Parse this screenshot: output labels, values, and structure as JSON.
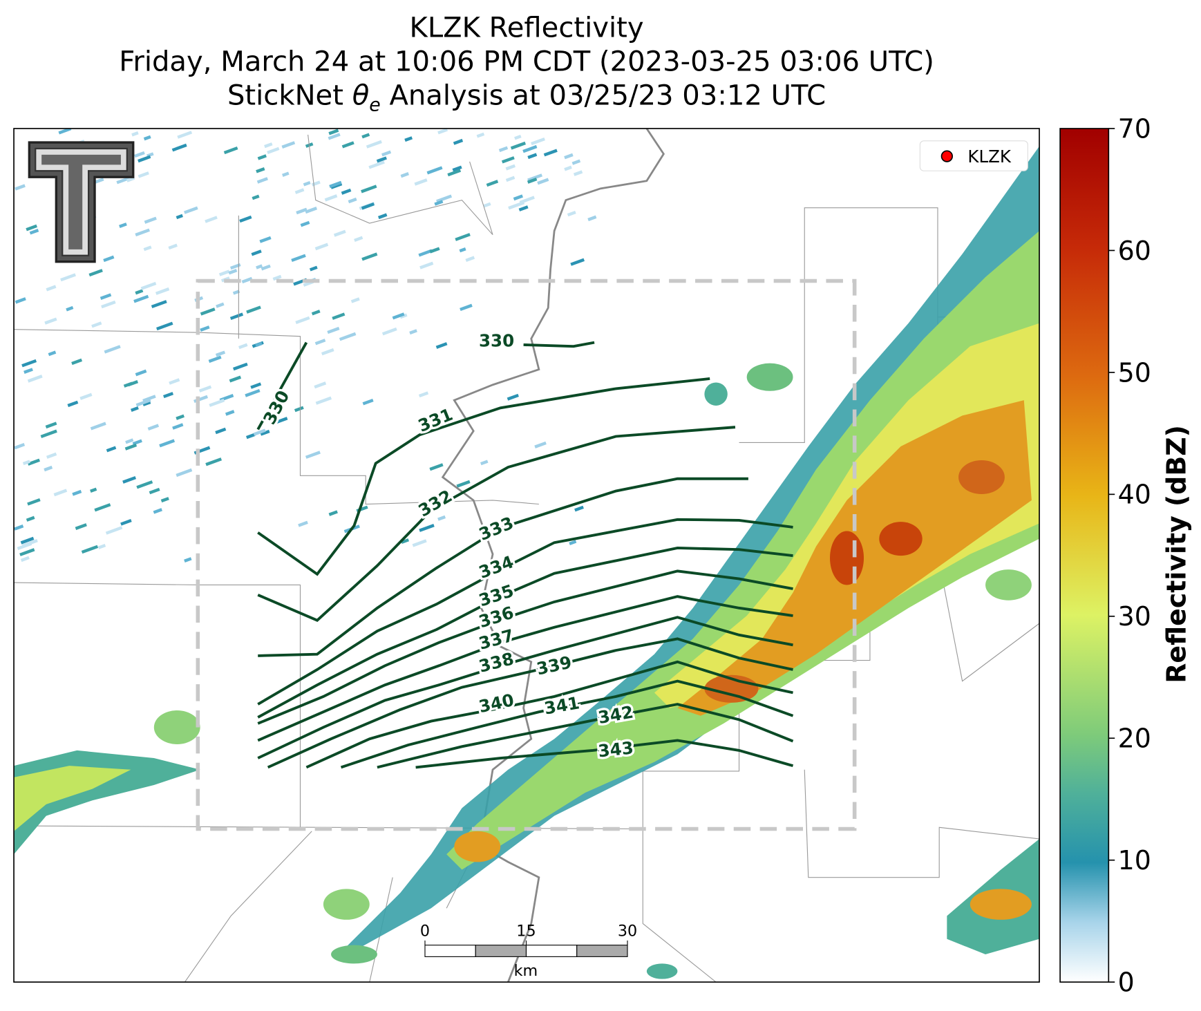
{
  "title": {
    "line1": "KLZK Reflectivity",
    "line2": "Friday, March 24 at 10:06 PM CDT (2023-03-25 03:06 UTC)",
    "line3": {
      "before": "StickNet ",
      "symbol": "θ",
      "subscript": "e",
      "after": " Analysis at 03/25/23 03:12 UTC"
    }
  },
  "legend": {
    "label": "KLZK",
    "color": "#ff0000"
  },
  "contours": {
    "color": "#0b4a26",
    "levels": [
      330,
      330,
      331,
      332,
      333,
      334,
      335,
      336,
      337,
      338,
      339,
      340,
      341,
      342,
      343
    ]
  },
  "colorbar": {
    "label": "Reflectivity (dBZ)",
    "lim": [
      0,
      70
    ],
    "ticks": [
      0,
      10,
      20,
      30,
      40,
      50,
      60,
      70
    ]
  },
  "scale_bar": {
    "ticks": [
      0,
      15,
      30
    ],
    "unit": "km"
  }
}
